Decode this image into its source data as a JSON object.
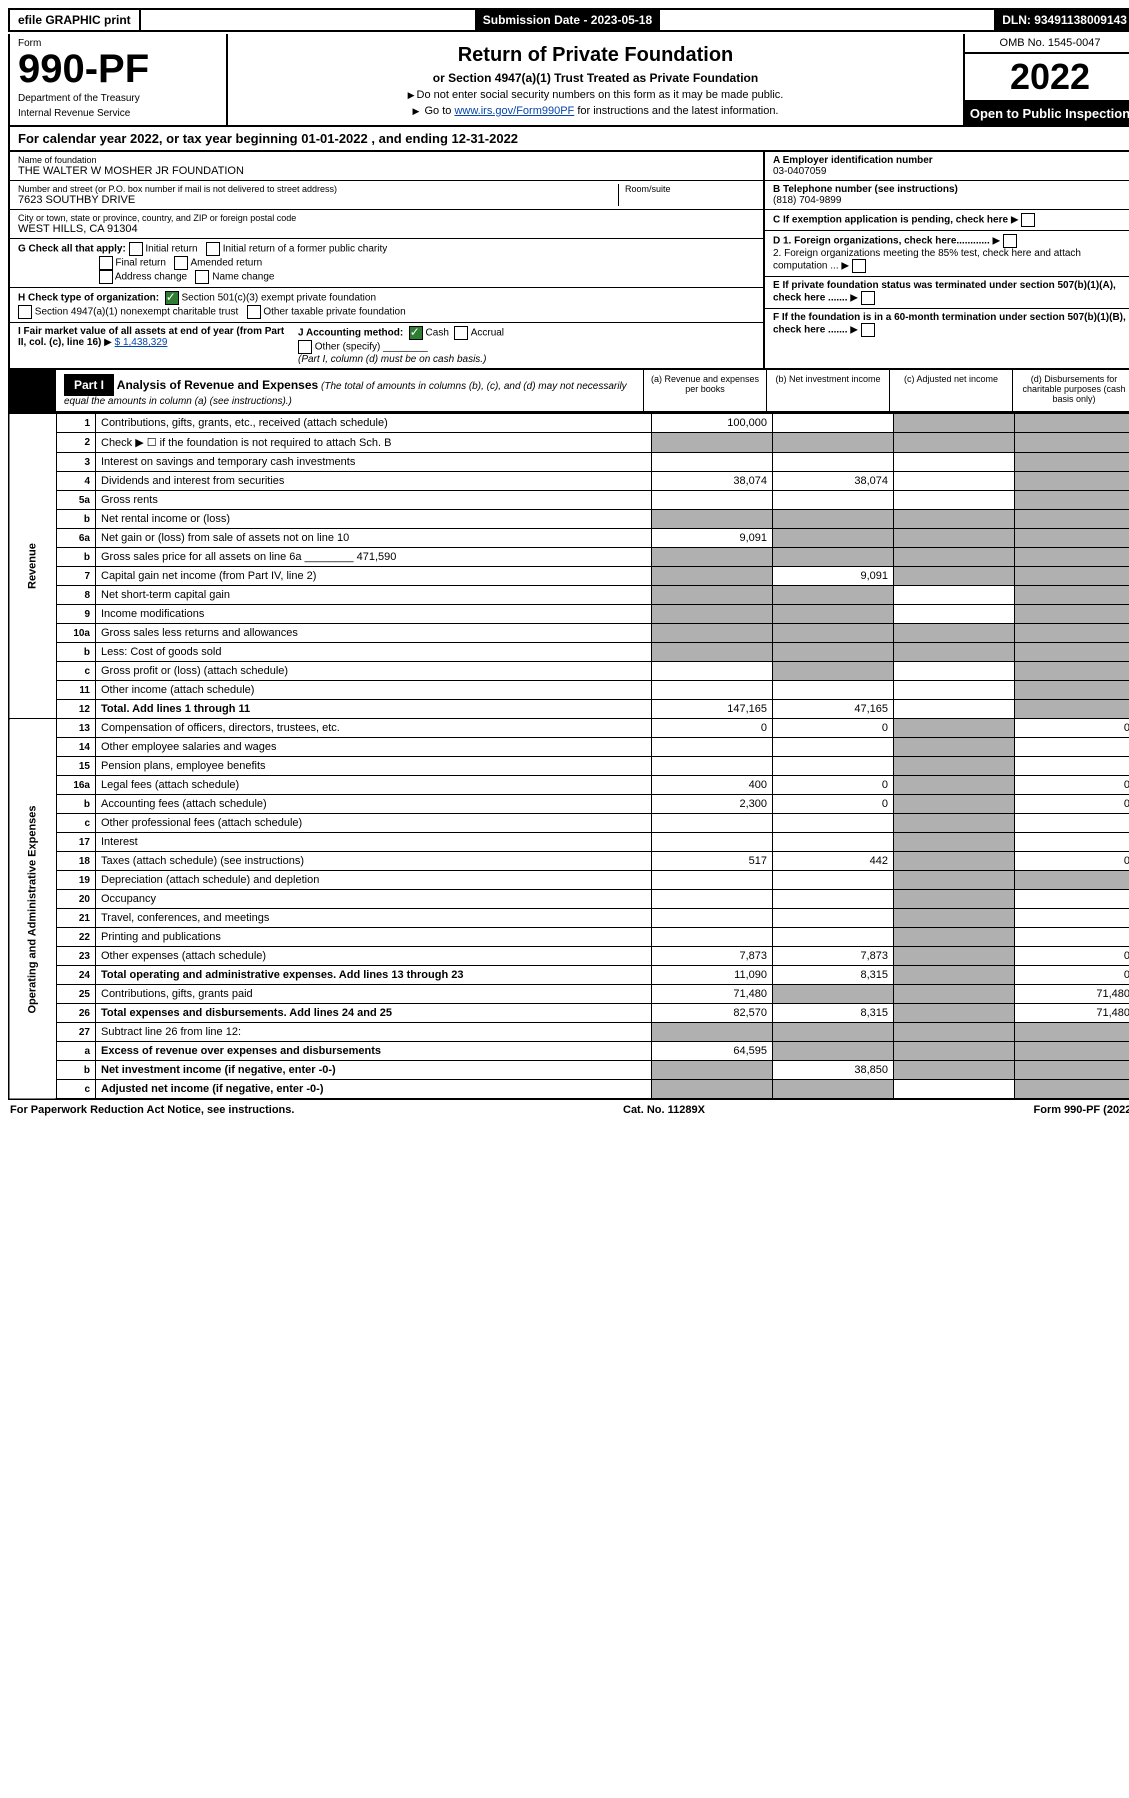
{
  "topbar": {
    "efile": "efile GRAPHIC print",
    "submission_label": "Submission Date - 2023-05-18",
    "dln": "DLN: 93491138009143"
  },
  "header": {
    "form_label": "Form",
    "form_code": "990-PF",
    "dept": "Department of the Treasury",
    "irs": "Internal Revenue Service",
    "title": "Return of Private Foundation",
    "subtitle": "or Section 4947(a)(1) Trust Treated as Private Foundation",
    "note1": "Do not enter social security numbers on this form as it may be made public.",
    "note2_prefix": "Go to ",
    "note2_link": "www.irs.gov/Form990PF",
    "note2_suffix": " for instructions and the latest information.",
    "omb": "OMB No. 1545-0047",
    "year": "2022",
    "open": "Open to Public Inspection"
  },
  "calendar": {
    "prefix": "For calendar year 2022, or tax year beginning ",
    "begin": "01-01-2022",
    "mid": " , and ending ",
    "end": "12-31-2022"
  },
  "filer": {
    "name_label": "Name of foundation",
    "name": "THE WALTER W MOSHER JR FOUNDATION",
    "addr_label": "Number and street (or P.O. box number if mail is not delivered to street address)",
    "addr": "7623 SOUTHBY DRIVE",
    "room_label": "Room/suite",
    "city_label": "City or town, state or province, country, and ZIP or foreign postal code",
    "city": "WEST HILLS, CA  91304",
    "ein_label": "A Employer identification number",
    "ein": "03-0407059",
    "phone_label": "B Telephone number (see instructions)",
    "phone": "(818) 704-9899",
    "c_label": "C If exemption application is pending, check here",
    "d1": "D 1. Foreign organizations, check here............",
    "d2": "2. Foreign organizations meeting the 85% test, check here and attach computation ...",
    "e_label": "E If private foundation status was terminated under section 507(b)(1)(A), check here .......",
    "f_label": "F If the foundation is in a 60-month termination under section 507(b)(1)(B), check here .......",
    "g_label": "G Check all that apply:",
    "g_opts": [
      "Initial return",
      "Initial return of a former public charity",
      "Final return",
      "Amended return",
      "Address change",
      "Name change"
    ],
    "h_label": "H Check type of organization:",
    "h_opt1": "Section 501(c)(3) exempt private foundation",
    "h_opt2": "Section 4947(a)(1) nonexempt charitable trust",
    "h_opt3": "Other taxable private foundation",
    "i_label": "I Fair market value of all assets at end of year (from Part II, col. (c), line 16)",
    "i_value": "$  1,438,329",
    "j_label": "J Accounting method:",
    "j_cash": "Cash",
    "j_accrual": "Accrual",
    "j_other": "Other (specify)",
    "j_note": "(Part I, column (d) must be on cash basis.)"
  },
  "part1": {
    "label": "Part I",
    "title": "Analysis of Revenue and Expenses",
    "note": " (The total of amounts in columns (b), (c), and (d) may not necessarily equal the amounts in column (a) (see instructions).)",
    "col_a": "(a) Revenue and expenses per books",
    "col_b": "(b) Net investment income",
    "col_c": "(c) Adjusted net income",
    "col_d": "(d) Disbursements for charitable purposes (cash basis only)"
  },
  "side": {
    "revenue": "Revenue",
    "expenses": "Operating and Administrative Expenses"
  },
  "rows": [
    {
      "ln": "1",
      "desc": "Contributions, gifts, grants, etc., received (attach schedule)",
      "a": "100,000",
      "b": "",
      "c": "shade",
      "d": "shade"
    },
    {
      "ln": "2",
      "desc": "Check ▶ ☐ if the foundation is not required to attach Sch. B",
      "a": "shade",
      "b": "shade",
      "c": "shade",
      "d": "shade"
    },
    {
      "ln": "3",
      "desc": "Interest on savings and temporary cash investments",
      "a": "",
      "b": "",
      "c": "",
      "d": "shade"
    },
    {
      "ln": "4",
      "desc": "Dividends and interest from securities",
      "a": "38,074",
      "b": "38,074",
      "c": "",
      "d": "shade"
    },
    {
      "ln": "5a",
      "desc": "Gross rents",
      "a": "",
      "b": "",
      "c": "",
      "d": "shade"
    },
    {
      "ln": "b",
      "desc": "Net rental income or (loss)",
      "a": "shade",
      "b": "shade",
      "c": "shade",
      "d": "shade"
    },
    {
      "ln": "6a",
      "desc": "Net gain or (loss) from sale of assets not on line 10",
      "a": "9,091",
      "b": "shade",
      "c": "shade",
      "d": "shade"
    },
    {
      "ln": "b",
      "desc": "Gross sales price for all assets on line 6a ________ 471,590",
      "a": "shade",
      "b": "shade",
      "c": "shade",
      "d": "shade"
    },
    {
      "ln": "7",
      "desc": "Capital gain net income (from Part IV, line 2)",
      "a": "shade",
      "b": "9,091",
      "c": "shade",
      "d": "shade"
    },
    {
      "ln": "8",
      "desc": "Net short-term capital gain",
      "a": "shade",
      "b": "shade",
      "c": "",
      "d": "shade"
    },
    {
      "ln": "9",
      "desc": "Income modifications",
      "a": "shade",
      "b": "shade",
      "c": "",
      "d": "shade"
    },
    {
      "ln": "10a",
      "desc": "Gross sales less returns and allowances",
      "a": "shade",
      "b": "shade",
      "c": "shade",
      "d": "shade"
    },
    {
      "ln": "b",
      "desc": "Less: Cost of goods sold",
      "a": "shade",
      "b": "shade",
      "c": "shade",
      "d": "shade"
    },
    {
      "ln": "c",
      "desc": "Gross profit or (loss) (attach schedule)",
      "a": "",
      "b": "shade",
      "c": "",
      "d": "shade"
    },
    {
      "ln": "11",
      "desc": "Other income (attach schedule)",
      "a": "",
      "b": "",
      "c": "",
      "d": "shade"
    },
    {
      "ln": "12",
      "desc": "Total. Add lines 1 through 11",
      "a": "147,165",
      "b": "47,165",
      "c": "",
      "d": "shade",
      "bold": true
    },
    {
      "ln": "13",
      "desc": "Compensation of officers, directors, trustees, etc.",
      "a": "0",
      "b": "0",
      "c": "shade",
      "d": "0"
    },
    {
      "ln": "14",
      "desc": "Other employee salaries and wages",
      "a": "",
      "b": "",
      "c": "shade",
      "d": ""
    },
    {
      "ln": "15",
      "desc": "Pension plans, employee benefits",
      "a": "",
      "b": "",
      "c": "shade",
      "d": ""
    },
    {
      "ln": "16a",
      "desc": "Legal fees (attach schedule)",
      "a": "400",
      "b": "0",
      "c": "shade",
      "d": "0"
    },
    {
      "ln": "b",
      "desc": "Accounting fees (attach schedule)",
      "a": "2,300",
      "b": "0",
      "c": "shade",
      "d": "0"
    },
    {
      "ln": "c",
      "desc": "Other professional fees (attach schedule)",
      "a": "",
      "b": "",
      "c": "shade",
      "d": ""
    },
    {
      "ln": "17",
      "desc": "Interest",
      "a": "",
      "b": "",
      "c": "shade",
      "d": ""
    },
    {
      "ln": "18",
      "desc": "Taxes (attach schedule) (see instructions)",
      "a": "517",
      "b": "442",
      "c": "shade",
      "d": "0"
    },
    {
      "ln": "19",
      "desc": "Depreciation (attach schedule) and depletion",
      "a": "",
      "b": "",
      "c": "shade",
      "d": "shade"
    },
    {
      "ln": "20",
      "desc": "Occupancy",
      "a": "",
      "b": "",
      "c": "shade",
      "d": ""
    },
    {
      "ln": "21",
      "desc": "Travel, conferences, and meetings",
      "a": "",
      "b": "",
      "c": "shade",
      "d": ""
    },
    {
      "ln": "22",
      "desc": "Printing and publications",
      "a": "",
      "b": "",
      "c": "shade",
      "d": ""
    },
    {
      "ln": "23",
      "desc": "Other expenses (attach schedule)",
      "a": "7,873",
      "b": "7,873",
      "c": "shade",
      "d": "0"
    },
    {
      "ln": "24",
      "desc": "Total operating and administrative expenses. Add lines 13 through 23",
      "a": "11,090",
      "b": "8,315",
      "c": "shade",
      "d": "0",
      "bold": true
    },
    {
      "ln": "25",
      "desc": "Contributions, gifts, grants paid",
      "a": "71,480",
      "b": "shade",
      "c": "shade",
      "d": "71,480"
    },
    {
      "ln": "26",
      "desc": "Total expenses and disbursements. Add lines 24 and 25",
      "a": "82,570",
      "b": "8,315",
      "c": "shade",
      "d": "71,480",
      "bold": true
    },
    {
      "ln": "27",
      "desc": "Subtract line 26 from line 12:",
      "a": "shade",
      "b": "shade",
      "c": "shade",
      "d": "shade"
    },
    {
      "ln": "a",
      "desc": "Excess of revenue over expenses and disbursements",
      "a": "64,595",
      "b": "shade",
      "c": "shade",
      "d": "shade",
      "bold": true
    },
    {
      "ln": "b",
      "desc": "Net investment income (if negative, enter -0-)",
      "a": "shade",
      "b": "38,850",
      "c": "shade",
      "d": "shade",
      "bold": true
    },
    {
      "ln": "c",
      "desc": "Adjusted net income (if negative, enter -0-)",
      "a": "shade",
      "b": "shade",
      "c": "",
      "d": "shade",
      "bold": true
    }
  ],
  "footer": {
    "left": "For Paperwork Reduction Act Notice, see instructions.",
    "center": "Cat. No. 11289X",
    "right": "Form 990-PF (2022)"
  },
  "colors": {
    "shade": "#b0b0b0",
    "link": "#0645ad",
    "check": "#2e7d32"
  }
}
